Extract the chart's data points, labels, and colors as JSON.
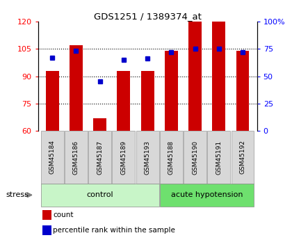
{
  "title": "GDS1251 / 1389374_at",
  "samples": [
    "GSM45184",
    "GSM45186",
    "GSM45187",
    "GSM45189",
    "GSM45193",
    "GSM45188",
    "GSM45190",
    "GSM45191",
    "GSM45192"
  ],
  "counts": [
    93,
    107,
    67,
    93,
    93,
    104,
    120,
    120,
    104
  ],
  "percentiles": [
    67,
    73,
    45,
    65,
    66,
    72,
    75,
    75,
    72
  ],
  "groups": [
    {
      "label": "control",
      "start": 0,
      "end": 5
    },
    {
      "label": "acute hypotension",
      "start": 5,
      "end": 9
    }
  ],
  "ylim_left": [
    60,
    120
  ],
  "ylim_right": [
    0,
    100
  ],
  "yticks_left": [
    60,
    75,
    90,
    105,
    120
  ],
  "yticks_right": [
    0,
    25,
    50,
    75,
    100
  ],
  "ytick_labels_right": [
    "0",
    "25",
    "50",
    "75",
    "100%"
  ],
  "bar_color": "#cc0000",
  "marker_color": "#0000cc",
  "bar_width": 0.55,
  "sample_bg_color": "#d8d8d8",
  "group_colors": [
    "#c8f5c8",
    "#6ee06e"
  ],
  "stress_label": "stress",
  "legend_count": "count",
  "legend_pct": "percentile rank within the sample",
  "grid_yticks": [
    75,
    90,
    105
  ]
}
